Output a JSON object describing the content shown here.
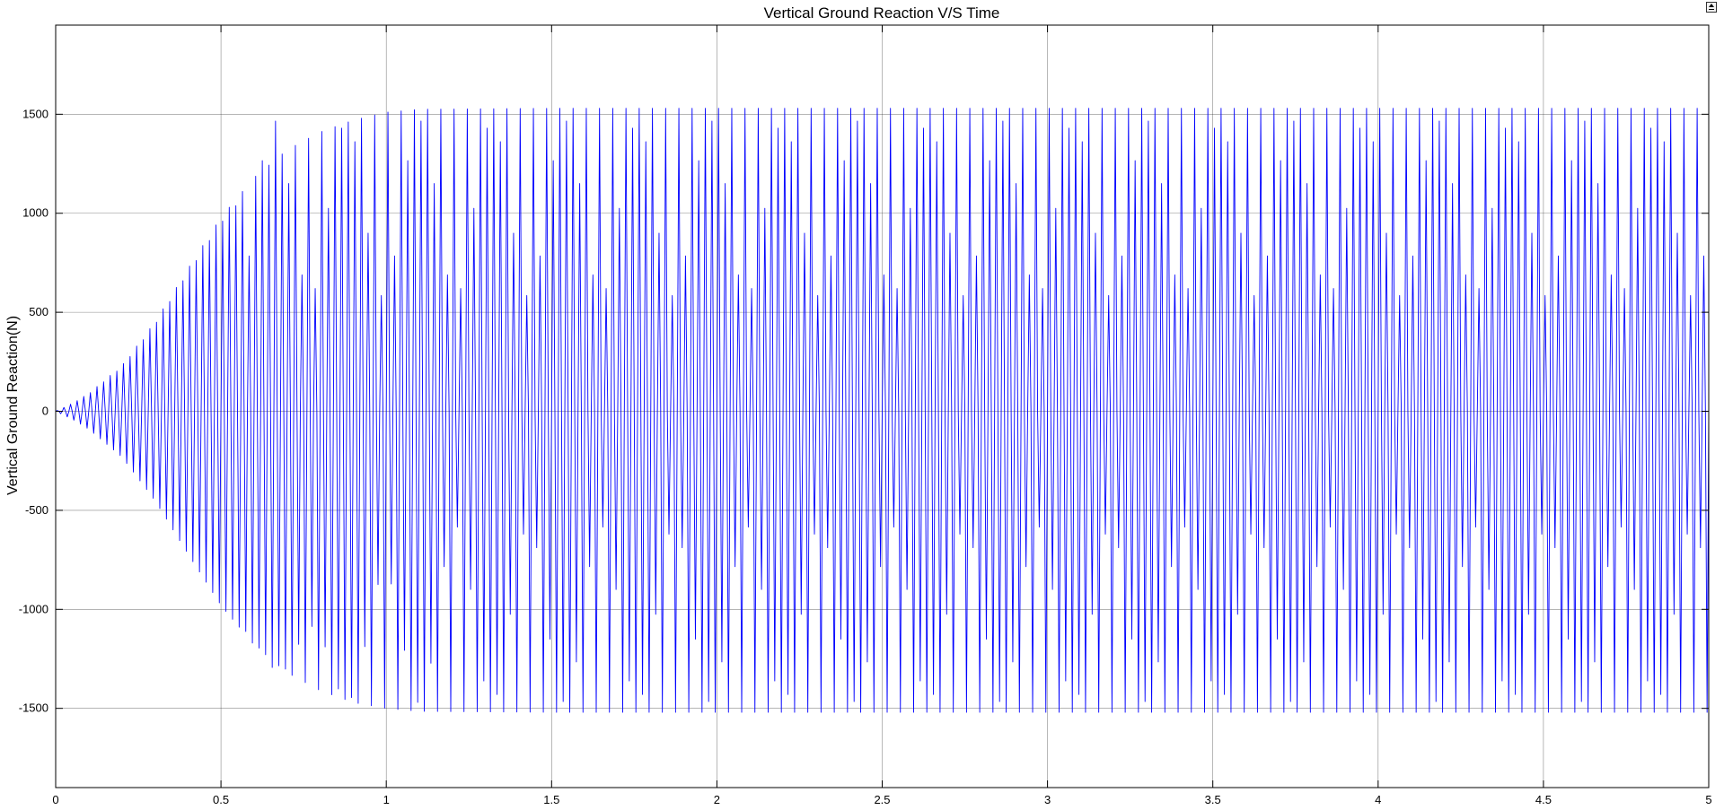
{
  "window": {
    "dock_button_icon": "dock-figure-icon"
  },
  "chart_data": {
    "type": "line",
    "title": "Vertical Ground Reaction V/S Time",
    "xlabel": "",
    "ylabel": "Vertical Ground Reaction(N)",
    "xlim": [
      0,
      5
    ],
    "ylim": [
      -1900,
      1950
    ],
    "grid": true,
    "legend": "none",
    "x_ticks": [
      0,
      0.5,
      1,
      1.5,
      2,
      2.5,
      3,
      3.5,
      4,
      4.5,
      5
    ],
    "x_tick_labels": [
      "0",
      "0.5",
      "1",
      "1.5",
      "2",
      "2.5",
      "3",
      "3.5",
      "4",
      "4.5",
      "5"
    ],
    "y_ticks": [
      1500,
      1000,
      500,
      0,
      -500,
      -1000,
      -1500
    ],
    "y_tick_labels": [
      "1500",
      "1000",
      "500",
      "0",
      "-500",
      "-1000",
      "-1500"
    ],
    "series": [
      {
        "color": "#0000ff",
        "oscillation_frequency_hz": 50,
        "steady_peak_positive": 1530,
        "steady_peak_negative": -1520,
        "inner_envelope_peak": 1470,
        "inner_envelope_trough": 580,
        "beat_period_s": 0.22,
        "settling_time_s": 1.1,
        "envelope_time": [
          0,
          0.05,
          0.1,
          0.2,
          0.3,
          0.4,
          0.5,
          0.6,
          0.7,
          0.8,
          0.9,
          1.0,
          1.1,
          1.5,
          2.0,
          2.5,
          3.0,
          3.5,
          4.0,
          4.5,
          5.0
        ],
        "envelope_upper": [
          0,
          40,
          90,
          230,
          450,
          720,
          980,
          1180,
          1320,
          1410,
          1470,
          1510,
          1525,
          1530,
          1530,
          1530,
          1530,
          1530,
          1530,
          1530,
          1530
        ],
        "envelope_lower": [
          0,
          -40,
          -90,
          -230,
          -450,
          -720,
          -980,
          -1180,
          -1320,
          -1410,
          -1470,
          -1500,
          -1515,
          -1520,
          -1520,
          -1520,
          -1520,
          -1520,
          -1520,
          -1520,
          -1520
        ]
      }
    ]
  }
}
